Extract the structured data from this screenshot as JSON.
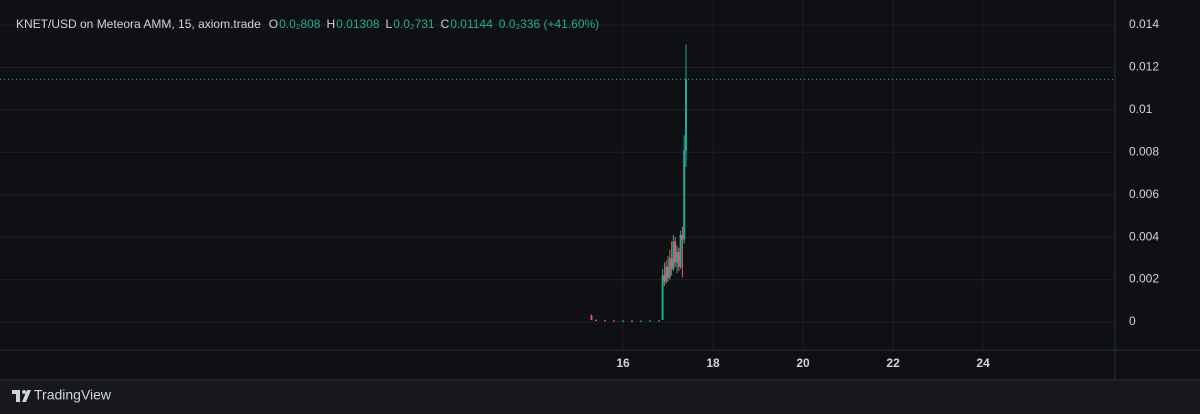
{
  "chart_data": {
    "type": "candlestick",
    "title": "KNET/USD on Meteora AMM, 15, axiom.trade",
    "ohlc_legend": [
      {
        "label": "O",
        "value": "0.0₂808"
      },
      {
        "label": "H",
        "value": "0.01308"
      },
      {
        "label": "L",
        "value": "0.0₂731"
      },
      {
        "label": "C",
        "value": "0.01144"
      }
    ],
    "change": "0.0₂336 (+41.60%)",
    "x": [
      15.3,
      15.4,
      15.6,
      15.8,
      16.0,
      16.2,
      16.4,
      16.6,
      16.8,
      16.88,
      16.92,
      16.96,
      17.0,
      17.04,
      17.08,
      17.12,
      17.16,
      17.2,
      17.24,
      17.28,
      17.32,
      17.36,
      17.4
    ],
    "open": [
      0.0003,
      0.0001,
      8e-05,
      7e-05,
      6e-05,
      6e-05,
      5e-05,
      6e-05,
      6e-05,
      0.0001,
      0.0022,
      0.0019,
      0.0026,
      0.0021,
      0.003,
      0.0025,
      0.0038,
      0.0028,
      0.0033,
      0.0026,
      0.0041,
      0.0039,
      0.00808
    ],
    "high": [
      0.00035,
      0.00012,
      0.0001,
      9e-05,
      8e-05,
      8e-05,
      7e-05,
      8e-05,
      9e-05,
      0.0025,
      0.0028,
      0.0029,
      0.0031,
      0.0034,
      0.0038,
      0.0041,
      0.004,
      0.0036,
      0.0035,
      0.0043,
      0.0045,
      0.0088,
      0.01308
    ],
    "low": [
      0.0001,
      5e-05,
      4e-05,
      4e-05,
      3e-05,
      3e-05,
      3e-05,
      4e-05,
      4e-05,
      0.0001,
      0.0017,
      0.0018,
      0.0019,
      0.002,
      0.0022,
      0.0024,
      0.0026,
      0.0023,
      0.0024,
      0.0025,
      0.0021,
      0.0037,
      0.00731
    ],
    "close": [
      0.0001,
      8e-05,
      7e-05,
      6e-05,
      6e-05,
      5e-05,
      6e-05,
      6e-05,
      7e-05,
      0.0022,
      0.0019,
      0.0026,
      0.0021,
      0.003,
      0.0025,
      0.0038,
      0.0028,
      0.0033,
      0.0026,
      0.0041,
      0.0039,
      0.0081,
      0.01144
    ],
    "up_color": "#22ab94",
    "down_color": "#f7525f",
    "xlim": [
      2.16,
      26.93
    ],
    "xticks": [
      16,
      18,
      20,
      22,
      24
    ],
    "ylim": [
      -0.00132,
      0.01518
    ],
    "yticks": [
      0,
      0.002,
      0.004,
      0.006,
      0.008,
      0.01,
      0.012,
      0.014
    ],
    "grid": true,
    "last_price_line": true,
    "branding": "TradingView"
  }
}
